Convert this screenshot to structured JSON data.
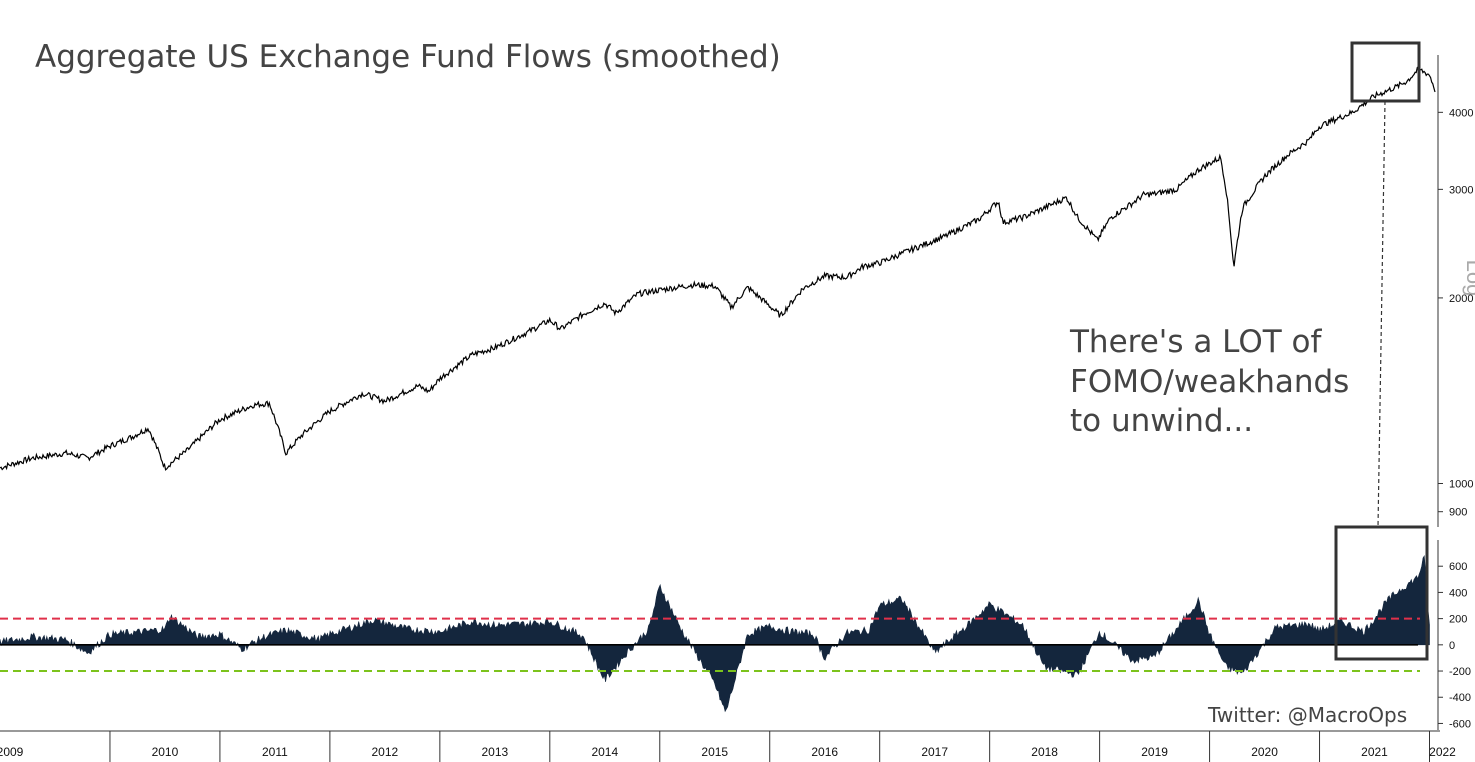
{
  "chart_data": [
    {
      "type": "line",
      "title": "Aggregate  US Exchange Fund Flows (smoothed)",
      "ylabel": "Log",
      "scale": "log",
      "ylim": [
        850,
        4900
      ],
      "xlim": [
        2009.0,
        2022.05
      ],
      "yticks": [
        "4000",
        "3000",
        "2000",
        "1000",
        "900"
      ],
      "ytick_values": [
        4000,
        3000,
        2000,
        1000,
        900
      ],
      "series": [
        {
          "x": [
            2009.0,
            2009.3,
            2009.6,
            2009.8,
            2010.0,
            2010.2,
            2010.35,
            2010.5,
            2010.7,
            2011.0,
            2011.3,
            2011.45,
            2011.6,
            2011.75,
            2012.0,
            2012.3,
            2012.5,
            2012.8,
            2012.9,
            2013.0,
            2013.3,
            2013.5,
            2013.8,
            2014.0,
            2014.1,
            2014.3,
            2014.5,
            2014.6,
            2014.8,
            2015.0,
            2015.3,
            2015.5,
            2015.65,
            2015.8,
            2016.0,
            2016.1,
            2016.3,
            2016.5,
            2016.7,
            2016.85,
            2017.0,
            2017.3,
            2017.6,
            2017.9,
            2018.08,
            2018.12,
            2018.3,
            2018.5,
            2018.7,
            2018.8,
            2018.98,
            2019.1,
            2019.3,
            2019.4,
            2019.5,
            2019.7,
            2019.9,
            2020.1,
            2020.15,
            2020.22,
            2020.3,
            2020.5,
            2020.7,
            2020.9,
            2021.0,
            2021.3,
            2021.5,
            2021.7,
            2021.8,
            2021.9,
            2022.0,
            2022.05
          ],
          "values": [
            1060,
            1100,
            1120,
            1100,
            1150,
            1190,
            1230,
            1060,
            1130,
            1270,
            1340,
            1350,
            1120,
            1200,
            1310,
            1400,
            1360,
            1440,
            1410,
            1480,
            1620,
            1660,
            1760,
            1840,
            1780,
            1880,
            1960,
            1890,
            2030,
            2060,
            2100,
            2090,
            1930,
            2080,
            1940,
            1870,
            2070,
            2170,
            2160,
            2250,
            2280,
            2400,
            2520,
            2680,
            2870,
            2650,
            2700,
            2800,
            2910,
            2700,
            2480,
            2700,
            2850,
            2940,
            2950,
            3000,
            3230,
            3380,
            3000,
            2240,
            2800,
            3150,
            3400,
            3600,
            3800,
            4000,
            4250,
            4400,
            4500,
            4700,
            4600,
            4350
          ]
        }
      ]
    },
    {
      "type": "area",
      "ylim": [
        -650,
        800
      ],
      "yticks": [
        "600",
        "400",
        "200",
        "0",
        "-200",
        "-400",
        "-600"
      ],
      "ytick_values": [
        600,
        400,
        200,
        0,
        -200,
        -400,
        -600
      ],
      "reference_lines": [
        {
          "value": 200,
          "color": "#e0304a"
        },
        {
          "value": -200,
          "color": "#7cc31c"
        }
      ],
      "series": [
        {
          "x": [
            2009.0,
            2009.3,
            2009.6,
            2009.8,
            2010.0,
            2010.3,
            2010.5,
            2010.55,
            2010.8,
            2011.0,
            2011.2,
            2011.4,
            2011.6,
            2011.9,
            2012.0,
            2012.4,
            2012.7,
            2013.0,
            2013.3,
            2013.5,
            2013.8,
            2014.0,
            2014.3,
            2014.5,
            2014.7,
            2014.9,
            2015.0,
            2015.2,
            2015.5,
            2015.6,
            2015.8,
            2016.0,
            2016.2,
            2016.4,
            2016.5,
            2016.7,
            2016.9,
            2017.0,
            2017.2,
            2017.5,
            2017.8,
            2018.0,
            2018.3,
            2018.5,
            2018.8,
            2019.0,
            2019.3,
            2019.5,
            2019.7,
            2019.9,
            2020.0,
            2020.15,
            2020.3,
            2020.6,
            2020.9,
            2021.0,
            2021.2,
            2021.4,
            2021.5,
            2021.6,
            2021.7,
            2021.8,
            2021.9,
            2021.95,
            2022.0
          ],
          "values": [
            20,
            60,
            40,
            -60,
            80,
            100,
            120,
            220,
            60,
            80,
            -30,
            60,
            110,
            40,
            80,
            190,
            120,
            100,
            180,
            150,
            160,
            180,
            70,
            -270,
            -60,
            120,
            450,
            110,
            -300,
            -520,
            80,
            140,
            100,
            80,
            -100,
            90,
            110,
            300,
            350,
            -60,
            150,
            310,
            150,
            -170,
            -230,
            100,
            -120,
            -90,
            120,
            340,
            80,
            -170,
            -220,
            130,
            160,
            110,
            180,
            100,
            200,
            320,
            400,
            460,
            520,
            680,
            150
          ]
        }
      ]
    }
  ],
  "annotation": {
    "lines": [
      "There's a LOT of",
      "FOMO/weakhands",
      "to unwind..."
    ]
  },
  "xaxis": {
    "years": [
      "2009",
      "2010",
      "2011",
      "2012",
      "2013",
      "2014",
      "2015",
      "2016",
      "2017",
      "2018",
      "2019",
      "2020",
      "2021",
      "2022"
    ]
  },
  "credit": "Twitter: @MacroOps"
}
